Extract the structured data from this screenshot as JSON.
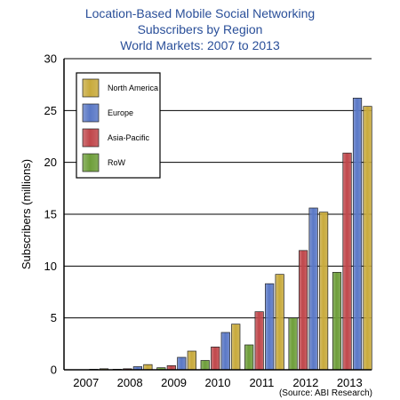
{
  "chart_data": {
    "type": "bar",
    "title_lines": [
      "Location-Based Mobile Social Networking",
      "Subscribers by Region",
      "World Markets: 2007 to 2013"
    ],
    "ylabel": "Subscribers (millions)",
    "xlabel": "",
    "categories": [
      "2007",
      "2008",
      "2009",
      "2010",
      "2011",
      "2012",
      "2013"
    ],
    "ylim": [
      0,
      30
    ],
    "yticks": [
      "0",
      "5",
      "10",
      "15",
      "20",
      "25",
      "30"
    ],
    "grid": true,
    "legend_position": "top-left",
    "series": [
      {
        "name": "RoW",
        "color": "#6e9e3a",
        "values": [
          0.0,
          0.05,
          0.2,
          0.9,
          2.4,
          5.0,
          9.4
        ]
      },
      {
        "name": "Asia-Pacific",
        "color": "#c0474b",
        "values": [
          0.0,
          0.1,
          0.4,
          2.2,
          5.6,
          11.5,
          20.9
        ]
      },
      {
        "name": "Europe",
        "color": "#5a78c6",
        "values": [
          0.05,
          0.3,
          1.2,
          3.6,
          8.3,
          15.6,
          26.2
        ]
      },
      {
        "name": "North America",
        "color": "#c8aa3c",
        "values": [
          0.1,
          0.5,
          1.8,
          4.4,
          9.2,
          15.2,
          25.4
        ]
      }
    ],
    "legend_order": [
      "North America",
      "Europe",
      "Asia-Pacific",
      "RoW"
    ],
    "source": "(Source: ABI Research)"
  }
}
